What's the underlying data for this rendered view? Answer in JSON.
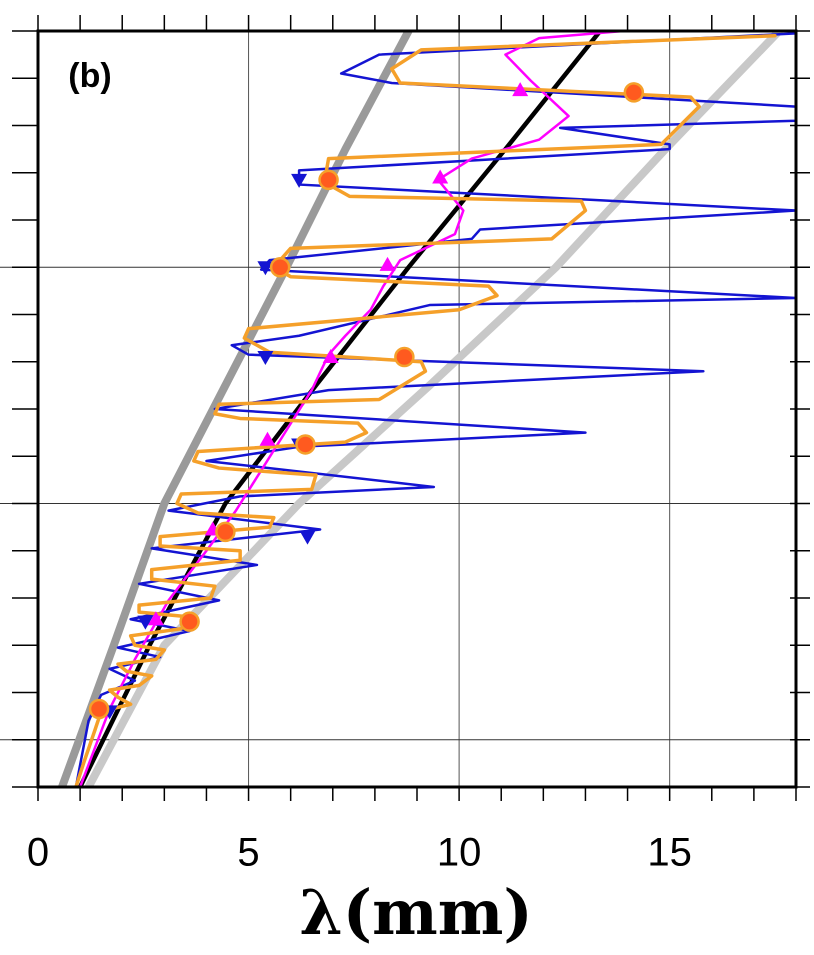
{
  "chart_data": {
    "type": "line",
    "annotation": "(b)",
    "x_label": "λ(mm)",
    "xlim": [
      0,
      18
    ],
    "ylim": [
      0,
      16
    ],
    "xticks": [
      0,
      5,
      10,
      15
    ],
    "xminorticks": [
      0,
      1,
      2,
      3,
      4,
      5,
      6,
      7,
      8,
      9,
      10,
      11,
      12,
      13,
      14,
      15,
      16,
      17,
      18
    ],
    "yticks": [
      0,
      1,
      2,
      3,
      4,
      5,
      6,
      7,
      8,
      9,
      10,
      11,
      12,
      13,
      14,
      15,
      16
    ],
    "ygrid": [
      1,
      6,
      11
    ],
    "series": [
      {
        "color": "#9a9a9a",
        "width": 8,
        "x": [
          0.57,
          1.8,
          3.0,
          4.45,
          5.9,
          7.3,
          8.8
        ],
        "values": [
          0,
          3,
          6,
          8.5,
          11,
          13.5,
          16
        ]
      },
      {
        "color": "#c8c8c8",
        "width": 8,
        "x": [
          1.2,
          3.0,
          6.2,
          9.3,
          12.3,
          14.9,
          17.6
        ],
        "values": [
          0,
          3,
          6,
          8.5,
          11,
          13.5,
          16
        ]
      },
      {
        "color": "#000000",
        "width": 4.5,
        "x": [
          1.0,
          2.65,
          4.45,
          6.6,
          8.8,
          11.1,
          13.35
        ],
        "values": [
          0,
          3,
          6,
          8.5,
          11,
          13.5,
          16
        ]
      },
      {
        "color": "#1414d2",
        "width": 2.5,
        "x": [
          18.0,
          8.1,
          7.2,
          8.4,
          18.0,
          18.0,
          12.4,
          15.0,
          15.0,
          6.2,
          6.2,
          18.0,
          10.5,
          10.3,
          5.5,
          5.3,
          18.0,
          9.3,
          6.2,
          4.6,
          5.0,
          15.8,
          6.9,
          4.2,
          13.0,
          6.2,
          4.0,
          9.4,
          4.8,
          3.1,
          6.7,
          2.7,
          5.2,
          2.4,
          4.3,
          2.2,
          3.6,
          1.9,
          2.9,
          1.7,
          2.3,
          1.5,
          1.2,
          0.9
        ],
        "values": [
          15.95,
          15.5,
          15.1,
          14.9,
          14.4,
          14.1,
          13.95,
          13.6,
          13.5,
          13.05,
          12.75,
          12.2,
          11.8,
          11.6,
          11.15,
          10.95,
          10.35,
          10.2,
          9.55,
          9.35,
          9.15,
          8.8,
          8.4,
          8.0,
          7.5,
          7.2,
          6.9,
          6.35,
          6.15,
          5.85,
          5.45,
          5.05,
          4.7,
          4.3,
          3.95,
          3.55,
          3.3,
          2.95,
          2.75,
          2.5,
          2.25,
          1.95,
          1.4,
          0
        ]
      },
      {
        "color": "#ff00ff",
        "width": 2.5,
        "x": [
          13.9,
          11.9,
          11.1,
          11.7,
          12.6,
          11.9,
          10.3,
          9.5,
          10.1,
          9.9,
          8.6,
          8.2,
          7.9,
          7.3,
          6.9,
          6.5,
          5.9,
          5.3,
          4.7,
          4.0,
          3.1,
          2.3,
          1.7,
          1.0
        ],
        "values": [
          16.0,
          15.85,
          15.5,
          14.95,
          14.2,
          13.7,
          13.3,
          12.85,
          12.2,
          11.7,
          11.15,
          10.6,
          10.1,
          9.55,
          9.15,
          8.4,
          7.55,
          6.7,
          5.85,
          5.0,
          3.95,
          2.7,
          1.65,
          0
        ]
      },
      {
        "color": "#f5a02a",
        "width": 3.5,
        "x": [
          17.5,
          9.1,
          8.4,
          8.6,
          15.5,
          15.7,
          14.8,
          6.9,
          6.8,
          7.4,
          12.9,
          13.0,
          12.2,
          6.0,
          5.6,
          6.0,
          10.7,
          10.9,
          10.0,
          5.0,
          4.9,
          5.5,
          9.1,
          9.2,
          8.1,
          4.3,
          4.2,
          4.8,
          7.6,
          7.8,
          7.3,
          3.8,
          3.7,
          4.3,
          6.6,
          6.5,
          3.4,
          3.3,
          3.8,
          5.6,
          5.5,
          2.9,
          2.9,
          4.8,
          4.8,
          2.7,
          2.7,
          4.2,
          4.1,
          2.4,
          2.4,
          3.6,
          3.4,
          2.2,
          2.3,
          3.0,
          2.8,
          1.9,
          2.1,
          2.7,
          2.4,
          1.7,
          1.9,
          2.2,
          1.5,
          1.35,
          1.1,
          0.9
        ],
        "values": [
          15.9,
          15.6,
          15.2,
          14.9,
          14.6,
          14.4,
          13.6,
          13.3,
          12.8,
          12.5,
          12.4,
          12.2,
          11.6,
          11.4,
          11.0,
          10.8,
          10.6,
          10.4,
          10.1,
          9.7,
          9.5,
          9.2,
          9.0,
          8.8,
          8.2,
          8.1,
          7.9,
          7.8,
          7.7,
          7.5,
          7.3,
          7.1,
          6.9,
          6.75,
          6.6,
          6.3,
          6.2,
          6.0,
          5.8,
          5.7,
          5.5,
          5.3,
          5.1,
          5.0,
          4.8,
          4.6,
          4.4,
          4.25,
          4.0,
          3.85,
          3.7,
          3.6,
          3.35,
          3.2,
          3.0,
          2.9,
          2.7,
          2.6,
          2.45,
          2.35,
          2.15,
          2.05,
          1.9,
          1.75,
          1.6,
          1.2,
          0.55,
          0
        ]
      },
      {
        "color": "#1414d2",
        "marker": "triangle-down",
        "x": [
          6.2,
          5.4,
          5.4,
          6.2,
          6.4,
          2.55,
          1.7
        ],
        "values": [
          12.85,
          11.0,
          9.1,
          7.25,
          5.3,
          3.5,
          1.6
        ]
      },
      {
        "color": "#ff00ff",
        "marker": "triangle-up",
        "x": [
          11.45,
          9.55,
          8.3,
          6.95,
          5.45,
          4.15,
          2.8
        ],
        "values": [
          14.75,
          12.9,
          11.05,
          9.1,
          7.35,
          5.45,
          3.55
        ]
      },
      {
        "color": "#ff5a1f",
        "marker": "circle",
        "x": [
          14.15,
          6.9,
          5.75,
          8.7,
          6.35,
          4.45,
          3.6,
          1.45
        ],
        "values": [
          14.7,
          12.85,
          11.0,
          9.1,
          7.25,
          5.4,
          3.5,
          1.65
        ]
      }
    ]
  }
}
